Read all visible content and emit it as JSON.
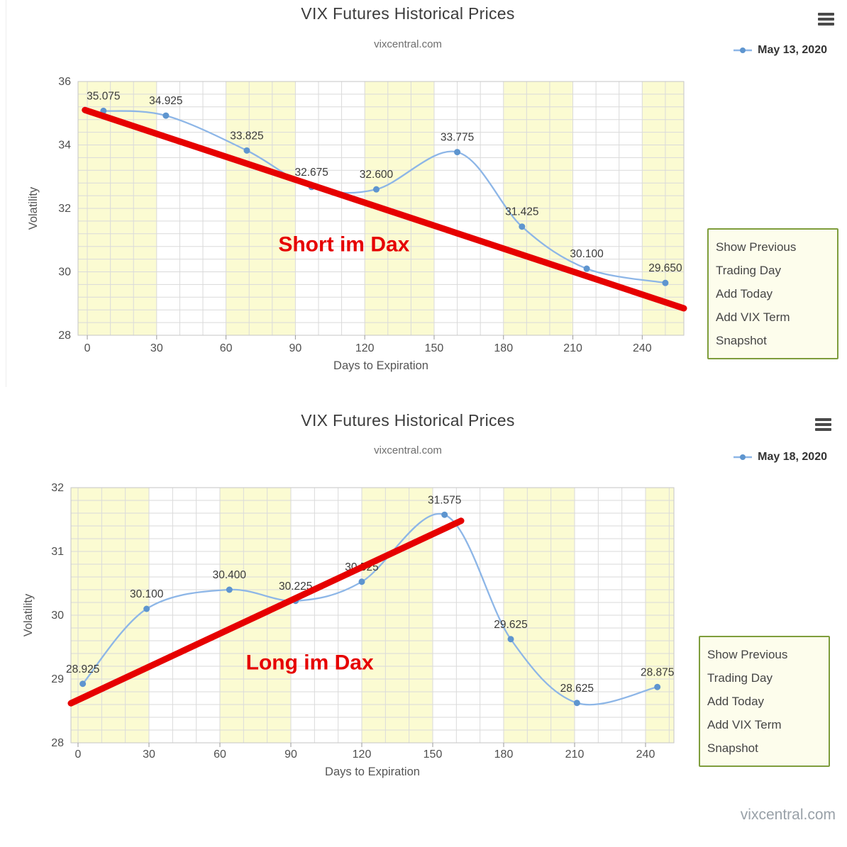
{
  "watermark": "vixcentral.com",
  "panels": [
    {
      "title": "VIX Futures Historical Prices",
      "subtitle": "vixcentral.com",
      "legend_label": "May 13, 2020",
      "menu_items": [
        "Show Previous Trading Day",
        "Add Today",
        "Add VIX Term",
        "Snapshot"
      ],
      "annotation": "Short im Dax"
    },
    {
      "title": "VIX Futures Historical Prices",
      "subtitle": "vixcentral.com",
      "legend_label": "May 18, 2020",
      "menu_items": [
        "Show Previous Trading Day",
        "Add Today",
        "Add VIX Term",
        "Snapshot"
      ],
      "annotation": "Long im Dax"
    }
  ],
  "chart_data": [
    {
      "type": "line",
      "title": "VIX Futures Historical Prices",
      "subtitle": "vixcentral.com",
      "xlabel": "Days to Expiration",
      "ylabel": "Volatility",
      "xlim": [
        -4,
        258
      ],
      "ylim": [
        28,
        36
      ],
      "xticks": [
        0,
        30,
        60,
        90,
        120,
        150,
        180,
        210,
        240
      ],
      "yticks": [
        28,
        30,
        32,
        34,
        36
      ],
      "x_minor": 10,
      "y_minor": 0.4,
      "grid": true,
      "band_interval": 30,
      "band_color": "#fbfbd2",
      "legend_position": "top-right",
      "series": [
        {
          "name": "May 13, 2020",
          "color": "#8db6e7",
          "marker_color": "#5e95cf",
          "x": [
            7,
            34,
            69,
            97,
            125,
            160,
            188,
            216,
            250
          ],
          "values": [
            35.075,
            34.925,
            33.825,
            32.675,
            32.6,
            33.775,
            31.425,
            30.1,
            29.65
          ],
          "labels": [
            "35.075",
            "34.925",
            "33.825",
            "32.675",
            "32.600",
            "33.775",
            "31.425",
            "30.100",
            "29.650"
          ]
        }
      ],
      "trendline": {
        "color": "#e60000",
        "points": [
          {
            "x": -1,
            "y": 35.1
          },
          {
            "x": 258,
            "y": 28.85
          }
        ]
      },
      "annotation": {
        "text": "Short im Dax",
        "x": 111,
        "y": 30.65,
        "color": "#e60000"
      }
    },
    {
      "type": "line",
      "title": "VIX Futures Historical Prices",
      "subtitle": "vixcentral.com",
      "xlabel": "Days to Expiration",
      "ylabel": "Volatility",
      "xlim": [
        -3,
        252
      ],
      "ylim": [
        28,
        32
      ],
      "xticks": [
        0,
        30,
        60,
        90,
        120,
        150,
        180,
        210,
        240
      ],
      "yticks": [
        28,
        29,
        30,
        31,
        32
      ],
      "x_minor": 10,
      "y_minor": 0.2,
      "grid": true,
      "band_interval": 30,
      "band_color": "#fbfbd2",
      "legend_position": "top-right",
      "series": [
        {
          "name": "May 18, 2020",
          "color": "#8db6e7",
          "marker_color": "#5e95cf",
          "x": [
            2,
            29,
            64,
            92,
            120,
            155,
            183,
            211,
            245
          ],
          "values": [
            28.925,
            30.1,
            30.4,
            30.225,
            30.525,
            31.575,
            29.625,
            28.625,
            28.875
          ],
          "labels": [
            "28.925",
            "30.100",
            "30.400",
            "30.225",
            "30.525",
            "31.575",
            "29.625",
            "28.625",
            "28.875"
          ]
        }
      ],
      "trendline": {
        "color": "#e60000",
        "points": [
          {
            "x": -3,
            "y": 28.62
          },
          {
            "x": 162,
            "y": 31.48
          }
        ]
      },
      "annotation": {
        "text": "Long im Dax",
        "x": 98,
        "y": 29.15,
        "color": "#e60000"
      }
    }
  ]
}
